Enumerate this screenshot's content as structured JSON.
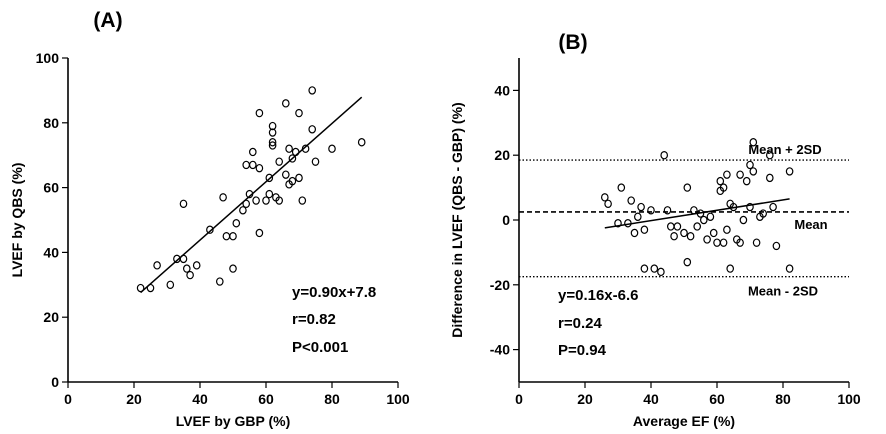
{
  "chart_data": [
    {
      "type": "scatter",
      "panel_label": "(A)",
      "xlabel": "LVEF by GBP (%)",
      "ylabel": "LVEF by QBS (%)",
      "xlim": [
        0,
        100
      ],
      "ylim": [
        0,
        100
      ],
      "xticks": [
        0,
        20,
        40,
        60,
        80,
        100
      ],
      "yticks": [
        0,
        20,
        40,
        60,
        80,
        100
      ],
      "points": [
        [
          22,
          29
        ],
        [
          25,
          29
        ],
        [
          27,
          36
        ],
        [
          31,
          30
        ],
        [
          33,
          38
        ],
        [
          35,
          55
        ],
        [
          35,
          38
        ],
        [
          36,
          35
        ],
        [
          37,
          33
        ],
        [
          39,
          36
        ],
        [
          43,
          47
        ],
        [
          46,
          31
        ],
        [
          47,
          57
        ],
        [
          48,
          45
        ],
        [
          50,
          35
        ],
        [
          50,
          45
        ],
        [
          51,
          49
        ],
        [
          53,
          53
        ],
        [
          54,
          67
        ],
        [
          54,
          55
        ],
        [
          55,
          58
        ],
        [
          56,
          67
        ],
        [
          56,
          71
        ],
        [
          57,
          56
        ],
        [
          58,
          66
        ],
        [
          58,
          46
        ],
        [
          58,
          83
        ],
        [
          60,
          56
        ],
        [
          61,
          58
        ],
        [
          61,
          63
        ],
        [
          62,
          73
        ],
        [
          62,
          79
        ],
        [
          62,
          77
        ],
        [
          62,
          74
        ],
        [
          63,
          57
        ],
        [
          64,
          56
        ],
        [
          64,
          68
        ],
        [
          66,
          86
        ],
        [
          66,
          64
        ],
        [
          67,
          72
        ],
        [
          67,
          61
        ],
        [
          68,
          69
        ],
        [
          68,
          62
        ],
        [
          69,
          71
        ],
        [
          70,
          83
        ],
        [
          70,
          63
        ],
        [
          71,
          56
        ],
        [
          72,
          72
        ],
        [
          74,
          90
        ],
        [
          74,
          78
        ],
        [
          75,
          68
        ],
        [
          80,
          72
        ],
        [
          89,
          74
        ]
      ],
      "fit_line": {
        "slope": 0.9,
        "intercept": 7.8,
        "x_range": [
          22,
          89
        ]
      },
      "annotations": [
        "y=0.90x+7.8",
        "r=0.82",
        "P<0.001"
      ]
    },
    {
      "type": "scatter",
      "panel_label": "(B)",
      "xlabel": "Average EF (%)",
      "ylabel": "Difference in LVEF (QBS - GBP) (%)",
      "xlim": [
        0,
        100
      ],
      "ylim": [
        -50,
        50
      ],
      "xticks": [
        0,
        20,
        40,
        60,
        80,
        100
      ],
      "yticks": [
        -40,
        -20,
        0,
        20,
        40
      ],
      "points": [
        [
          26,
          7
        ],
        [
          27,
          5
        ],
        [
          30,
          -1
        ],
        [
          31,
          10
        ],
        [
          33,
          -1
        ],
        [
          34,
          6
        ],
        [
          35,
          -4
        ],
        [
          36,
          1
        ],
        [
          37,
          4
        ],
        [
          38,
          -3
        ],
        [
          38,
          -15
        ],
        [
          40,
          3
        ],
        [
          41,
          -15
        ],
        [
          43,
          -16
        ],
        [
          44,
          20
        ],
        [
          45,
          3
        ],
        [
          46,
          -2
        ],
        [
          47,
          -5
        ],
        [
          48,
          -2
        ],
        [
          50,
          -4
        ],
        [
          51,
          10
        ],
        [
          51,
          -13
        ],
        [
          52,
          -5
        ],
        [
          53,
          3
        ],
        [
          54,
          -2
        ],
        [
          55,
          2
        ],
        [
          56,
          0
        ],
        [
          57,
          -6
        ],
        [
          58,
          1
        ],
        [
          59,
          -4
        ],
        [
          60,
          -7
        ],
        [
          61,
          12
        ],
        [
          61,
          9
        ],
        [
          62,
          10
        ],
        [
          62,
          -7
        ],
        [
          63,
          -3
        ],
        [
          63,
          14
        ],
        [
          64,
          -15
        ],
        [
          64,
          5
        ],
        [
          65,
          4
        ],
        [
          66,
          -6
        ],
        [
          67,
          -7
        ],
        [
          67,
          14
        ],
        [
          68,
          0
        ],
        [
          69,
          12
        ],
        [
          70,
          17
        ],
        [
          70,
          4
        ],
        [
          71,
          24
        ],
        [
          71,
          15
        ],
        [
          72,
          -7
        ],
        [
          73,
          1
        ],
        [
          74,
          2
        ],
        [
          76,
          20
        ],
        [
          76,
          13
        ],
        [
          77,
          4
        ],
        [
          78,
          -8
        ],
        [
          82,
          15
        ],
        [
          82,
          -15
        ]
      ],
      "fit_line": {
        "slope": 0.16,
        "intercept": -6.6,
        "x_range": [
          26,
          82
        ]
      },
      "reference_lines": [
        {
          "label": "Mean + 2SD",
          "y": 18.5,
          "style": "dotted"
        },
        {
          "label": "Mean",
          "y": 2.5,
          "style": "dashed"
        },
        {
          "label": "Mean - 2SD",
          "y": -17.5,
          "style": "dotted"
        }
      ],
      "annotations": [
        "y=0.16x-6.6",
        "r=0.24",
        "P=0.94"
      ]
    }
  ]
}
